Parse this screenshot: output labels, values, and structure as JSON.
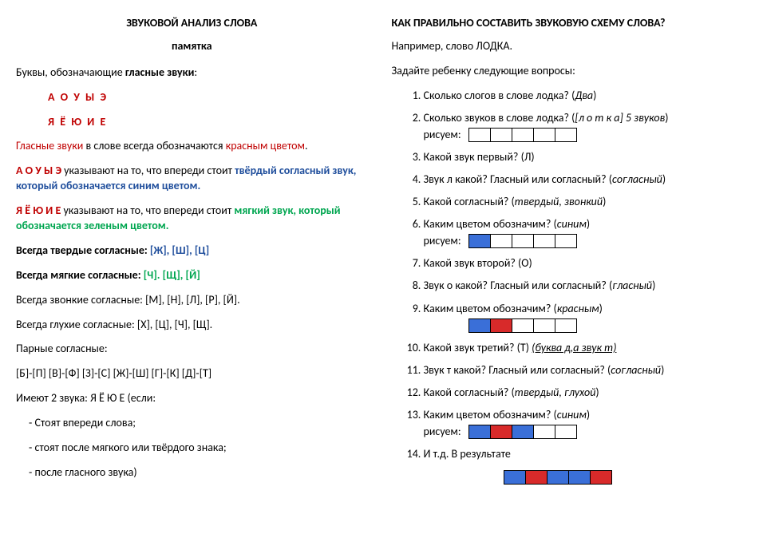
{
  "colors": {
    "red": "#c00000",
    "blue": "#1f4e9c",
    "green": "#00a650",
    "boxBlue": "#3a6fd8",
    "boxRed": "#d82a2a"
  },
  "left": {
    "title": "ЗВУКОВОЙ АНАЛИЗ СЛОВА",
    "subtitle": "памятка",
    "intro_a": "Буквы, обозначающие ",
    "intro_b": "гласные звуки",
    "intro_c": ":",
    "vowels1": "А О У Ы Э",
    "vowels2": "Я Ё Ю И Е",
    "l1_a": "Гласные звуки",
    "l1_b": " в слове всегда обозначаются ",
    "l1_c": "красным цветом",
    "l1_d": ".",
    "l2_a": "А О У Ы Э",
    "l2_b": " указывают на то, что впереди стоит ",
    "l2_c": "твёрдый согласный звук, который   обозначается синим цветом.",
    "l3_a": "Я Ё Ю И Е",
    "l3_b": " указывают на то, что впереди стоит ",
    "l3_c": "мягкий звук, который обозначается зеленым цветом.",
    "l4_a": "Всегда твердые согласные:  ",
    "l4_b": "[Ж], [Ш], [Ц]",
    "l5_a": "Всегда мягкие согласные:   ",
    "l5_b": "[Ч]. [Щ], [Й]",
    "l6": "Всегда звонкие согласные:   [М], [Н], [Л], [Р], [Й].",
    "l7": "Всегда глухие согласные:     [Х], [Ц], [Ч], [Щ].",
    "l8": "Парные согласные:",
    "l9": "[Б]-[П]   [В]-[Ф]   [З]-[С]   [Ж]-[Ш]   [Г]-[К]   [Д]-[Т]",
    "l10_a": "Имеют 2 звука:             ",
    "l10_b": "Я Ё Ю Е",
    "l10_c": "       (если:",
    "b1": "Стоят впереди слова;",
    "b2": "стоят  после мягкого или твёрдого знака;",
    "b3": "после гласного звука)"
  },
  "right": {
    "title": "КАК ПРАВИЛЬНО СОСТАВИТЬ ЗВУКОВУЮ СХЕМУ СЛОВА?",
    "ex": "Например,  слово ЛОДКА.",
    "ask": "Задайте ребенку следующие вопросы:",
    "q1_a": "Сколько слогов в слове лодка? (",
    "q1_b": "Два",
    "q1_c": ")",
    "q2_a": "Сколько звуков в слове лодка? (",
    "q2_b": "[л  о  т  к  а] 5 звуков",
    "q2_c": ")",
    "draw": "рисуем:",
    "q3": "Какой звук первый? (Л)",
    "q4_a": "Звук л какой? Гласный или согласный? (",
    "q4_b": "согласный",
    "q4_c": ")",
    "q5_a": "Какой согласный? (",
    "q5_b": "твердый, звонкий",
    "q5_c": ")",
    "q6_a": "Каким цветом обозначим? (",
    "q6_b": "синим",
    "q6_c": ")",
    "q7": "Какой звук второй? (О)",
    "q8_a": "Звук о какой? Гласный или согласный? (",
    "q8_b": "гласный",
    "q8_c": ")",
    "q9_a": "Каким цветом обозначим? (",
    "q9_b": "красным",
    "q9_c": ")",
    "q10_a": "Какой звук третий? (Т) ",
    "q10_b": "(буква д,а звук т)",
    "q11_a": "Звук т какой? Гласный или согласный? (",
    "q11_b": "согласный",
    "q11_c": ")",
    "q12_a": "Какой согласный? (",
    "q12_b": "твердый, глухой",
    "q12_c": ")",
    "q13_a": "Каким цветом обозначим? (",
    "q13_b": "синим",
    "q13_c": ")",
    "q14": "И т.д. В результате",
    "schemes": {
      "s1": [
        "white",
        "white",
        "white",
        "white",
        "white"
      ],
      "s2": [
        "blue",
        "white",
        "white",
        "white",
        "white"
      ],
      "s3": [
        "blue",
        "red",
        "white",
        "white",
        "white"
      ],
      "s4": [
        "blue",
        "red",
        "blue",
        "white",
        "white"
      ],
      "s5": [
        "blue",
        "red",
        "blue",
        "blue",
        "red"
      ]
    }
  }
}
